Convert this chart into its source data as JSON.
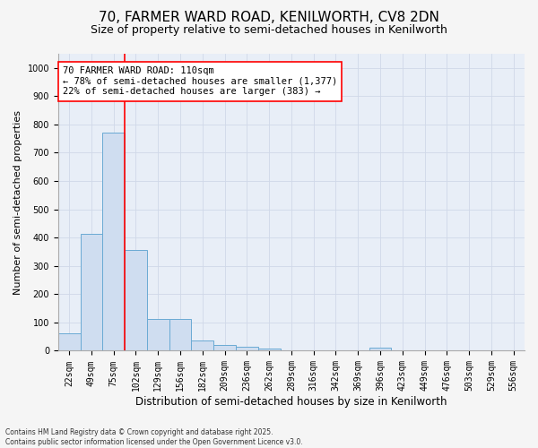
{
  "title1": "70, FARMER WARD ROAD, KENILWORTH, CV8 2DN",
  "title2": "Size of property relative to semi-detached houses in Kenilworth",
  "xlabel": "Distribution of semi-detached houses by size in Kenilworth",
  "ylabel": "Number of semi-detached properties",
  "footnote": "Contains HM Land Registry data © Crown copyright and database right 2025.\nContains public sector information licensed under the Open Government Licence v3.0.",
  "categories": [
    "22sqm",
    "49sqm",
    "75sqm",
    "102sqm",
    "129sqm",
    "156sqm",
    "182sqm",
    "209sqm",
    "236sqm",
    "262sqm",
    "289sqm",
    "316sqm",
    "342sqm",
    "369sqm",
    "396sqm",
    "423sqm",
    "449sqm",
    "476sqm",
    "503sqm",
    "529sqm",
    "556sqm"
  ],
  "bar_heights": [
    63,
    413,
    770,
    355,
    113,
    113,
    35,
    20,
    15,
    8,
    0,
    0,
    0,
    0,
    10,
    0,
    0,
    0,
    0,
    0,
    0
  ],
  "bar_color": "#cfddf0",
  "bar_edge_color": "#6aaad4",
  "red_line_x": 2.5,
  "annotation_text": "70 FARMER WARD ROAD: 110sqm\n← 78% of semi-detached houses are smaller (1,377)\n22% of semi-detached houses are larger (383) →",
  "ylim": [
    0,
    1050
  ],
  "yticks": [
    0,
    100,
    200,
    300,
    400,
    500,
    600,
    700,
    800,
    900,
    1000
  ],
  "plot_bg_color": "#e8eef7",
  "fig_bg_color": "#f5f5f5",
  "grid_color": "#d0d8e8",
  "title1_fontsize": 11,
  "title2_fontsize": 9,
  "tick_fontsize": 7,
  "ylabel_fontsize": 8,
  "xlabel_fontsize": 8.5,
  "annot_fontsize": 7.5,
  "footnote_fontsize": 5.5
}
